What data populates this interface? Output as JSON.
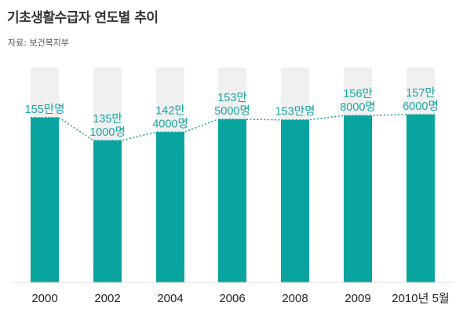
{
  "title": "기초생활수급자 연도별 추이",
  "source": "자료: 보건복지부",
  "colors": {
    "bar": "#0aa49e",
    "background_column": "#f0f0f0",
    "label": "#1aa6a0",
    "line": "#1aa6a0"
  },
  "chart_data": {
    "type": "bar",
    "categories": [
      "2000",
      "2002",
      "2004",
      "2006",
      "2008",
      "2009",
      "2010년 5월"
    ],
    "values": [
      1550000,
      1351000,
      1424000,
      1535000,
      1530000,
      1568000,
      1576000
    ],
    "data_labels": [
      [
        "155만명"
      ],
      [
        "135만",
        "1000명"
      ],
      [
        "142만",
        "4000명"
      ],
      [
        "153만",
        "5000명"
      ],
      [
        "153만명"
      ],
      [
        "156만",
        "8000명"
      ],
      [
        "157만",
        "6000명"
      ]
    ],
    "connector": "dotted line through bar tops",
    "grid": false,
    "legend": "none"
  }
}
